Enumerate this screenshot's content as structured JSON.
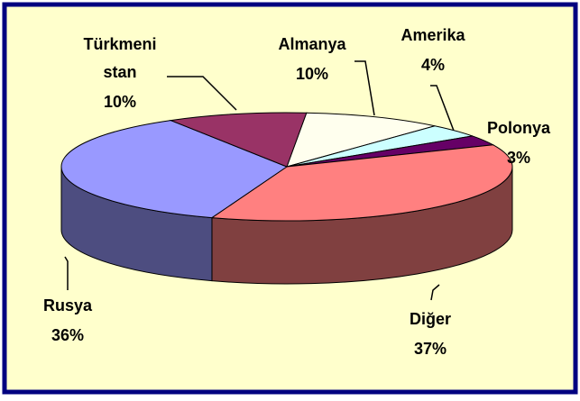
{
  "chart_data": {
    "type": "pie3d",
    "categories": [
      "Almanya",
      "Amerika",
      "Polonya",
      "Diğer",
      "Rusya",
      "Türkmeni stan"
    ],
    "values": [
      10,
      4,
      3,
      37,
      36,
      10
    ],
    "value_labels": [
      "10%",
      "4%",
      "3%",
      "37%",
      "36%",
      "10%"
    ],
    "colors": [
      "#ffffee",
      "#ccffff",
      "#660066",
      "#ff8080",
      "#9999ff",
      "#993366"
    ]
  }
}
